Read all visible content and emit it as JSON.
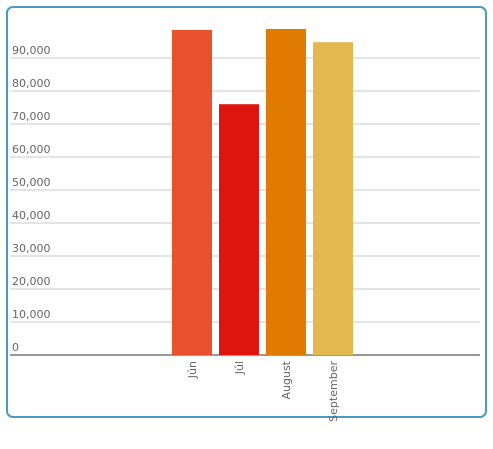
{
  "chart_data": {
    "type": "bar",
    "categories": [
      "Jún",
      "Júl",
      "August",
      "September"
    ],
    "values": [
      98500,
      76000,
      98800,
      94800
    ],
    "colors": [
      "#e8502e",
      "#e0140f",
      "#e07a00",
      "#e3b84f"
    ],
    "ylim": [
      0,
      100000
    ],
    "yticks": [
      0,
      {
        "value": 10000,
        "label": "10,000"
      },
      {
        "value": 20000,
        "label": "20,000"
      },
      {
        "value": 30000,
        "label": "30,000"
      },
      {
        "value": 40000,
        "label": "40,000"
      },
      {
        "value": 50000,
        "label": "50,000"
      },
      {
        "value": 60000,
        "label": "60,000"
      },
      {
        "value": 70000,
        "label": "70,000"
      },
      {
        "value": 80000,
        "label": "80,000"
      },
      {
        "value": 90000,
        "label": "90,000"
      }
    ],
    "grid": true
  }
}
